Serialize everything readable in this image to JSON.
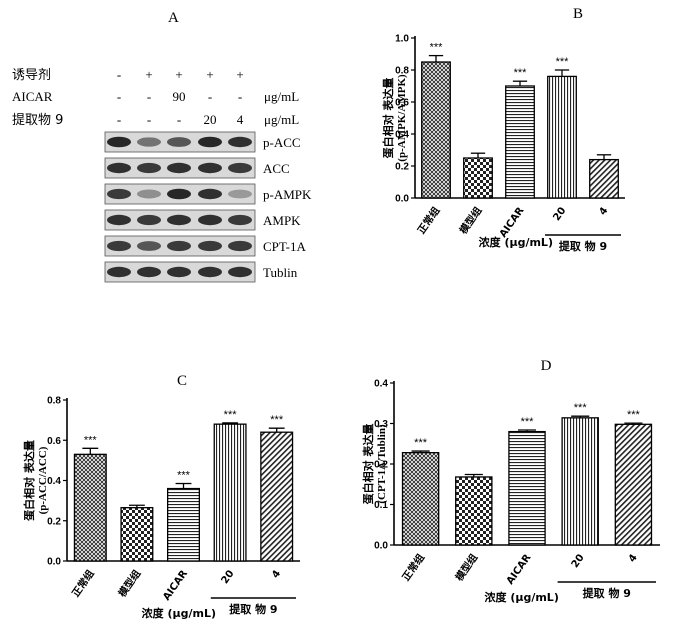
{
  "blot": {
    "label": "A",
    "rows": [
      {
        "name": "诱导剂",
        "values": [
          "-",
          "+",
          "+",
          "+",
          "+"
        ],
        "unit": ""
      },
      {
        "name": "AICAR",
        "values": [
          "-",
          "-",
          "90",
          "-",
          "-"
        ],
        "unit": "μg/mL"
      },
      {
        "name": "提取物 9",
        "values": [
          "-",
          "-",
          "-",
          "20",
          "4"
        ],
        "unit": "μg/mL"
      }
    ],
    "bands": [
      "p-ACC",
      "ACC",
      "p-AMPK",
      "AMPK",
      "CPT-1A",
      "Tublin"
    ],
    "band_intensity": [
      [
        0.85,
        0.45,
        0.6,
        0.85,
        0.8
      ],
      [
        0.8,
        0.75,
        0.8,
        0.8,
        0.75
      ],
      [
        0.75,
        0.3,
        0.85,
        0.8,
        0.25
      ],
      [
        0.8,
        0.75,
        0.8,
        0.8,
        0.75
      ],
      [
        0.75,
        0.6,
        0.75,
        0.75,
        0.75
      ],
      [
        0.8,
        0.8,
        0.8,
        0.8,
        0.8
      ]
    ]
  },
  "chart_data": [
    {
      "label": "B",
      "type": "bar",
      "categories": [
        "正常组",
        "模型组",
        "AICAR",
        "20",
        "4"
      ],
      "values": [
        0.85,
        0.25,
        0.7,
        0.76,
        0.24
      ],
      "errors": [
        0.04,
        0.03,
        0.03,
        0.04,
        0.03
      ],
      "significance": [
        "***",
        "",
        "***",
        "***",
        ""
      ],
      "patterns": [
        "crosshatch",
        "checker",
        "hlines",
        "vlines",
        "diag"
      ],
      "ylabel": [
        "蛋白相对 表达量",
        "(p-AMPK/AMPK)"
      ],
      "xlabel": "浓度 (μg/mL)",
      "group_label": "提取 物 9",
      "ylim": [
        0,
        1.0
      ],
      "yticks": [
        "0.0",
        "0.2",
        "0.4",
        "0.6",
        "0.8",
        "1.0"
      ]
    },
    {
      "label": "C",
      "type": "bar",
      "categories": [
        "正常组",
        "模型组",
        "AICAR",
        "20",
        "4"
      ],
      "values": [
        0.53,
        0.265,
        0.36,
        0.68,
        0.64
      ],
      "errors": [
        0.03,
        0.012,
        0.025,
        0.006,
        0.02
      ],
      "significance": [
        "***",
        "",
        "***",
        "***",
        "***"
      ],
      "patterns": [
        "crosshatch",
        "checker",
        "hlines",
        "vlines",
        "diag"
      ],
      "ylabel": [
        "蛋白相对 表达量",
        "(p-ACC/ACC)"
      ],
      "xlabel": "浓度 (μg/mL)",
      "group_label": "提取 物 9",
      "ylim": [
        0,
        0.8
      ],
      "yticks": [
        "0.0",
        "0.2",
        "0.4",
        "0.6",
        "0.8"
      ]
    },
    {
      "label": "D",
      "type": "bar",
      "categories": [
        "正常组",
        "模型组",
        "AICAR",
        "20",
        "4"
      ],
      "values": [
        0.228,
        0.168,
        0.28,
        0.314,
        0.298
      ],
      "errors": [
        0.004,
        0.006,
        0.004,
        0.004,
        0.003
      ],
      "significance": [
        "***",
        "",
        "***",
        "***",
        "***"
      ],
      "patterns": [
        "crosshatch",
        "checker",
        "hlines",
        "vlines",
        "diag"
      ],
      "ylabel": [
        "蛋白相对 表达量",
        "(CPT-1A/Tublin)"
      ],
      "xlabel": "浓度 (μg/mL)",
      "group_label": "提取 物 9",
      "ylim": [
        0,
        0.4
      ],
      "yticks": [
        "0.0",
        "0.1",
        "0.2",
        "0.3",
        "0.4"
      ]
    }
  ]
}
